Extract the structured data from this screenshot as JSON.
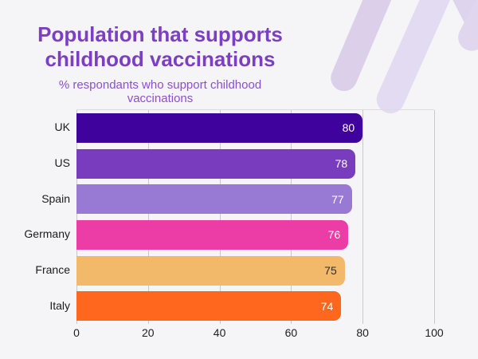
{
  "header": {
    "title_line1": "Population that supports",
    "title_line2": "childhood vaccinations",
    "subtitle": "% respondants who support childhood vaccinations"
  },
  "chart_data": {
    "type": "bar",
    "orientation": "horizontal",
    "title": "Population that supports childhood vaccinations",
    "subtitle": "% respondants who support childhood vaccinations",
    "categories": [
      "UK",
      "US",
      "Spain",
      "Germany",
      "France",
      "Italy"
    ],
    "values": [
      80,
      78,
      77,
      76,
      75,
      74
    ],
    "bar_colors": [
      "#40029d",
      "#7a3cbf",
      "#9879d3",
      "#ec3da6",
      "#f3b96a",
      "#ff661e"
    ],
    "value_label_colors": [
      "#ffffff",
      "#ffffff",
      "#ffffff",
      "#ffffff",
      "#2e2e2e",
      "#ffffff"
    ],
    "x_ticks": [
      0,
      20,
      40,
      60,
      80,
      100
    ],
    "xlim": [
      0,
      100
    ],
    "xlabel": "",
    "ylabel": "",
    "grid": "vertical",
    "legend": false
  },
  "colors": {
    "background": "#f5f4f6",
    "title": "#7c3ec2",
    "subtitle": "#8a50ce",
    "gridline": "#c9c9c9",
    "plot_top_border": "#dcdcdc",
    "category_label": "#1c1c1c",
    "tick_label": "#202020",
    "decoration": "#ddd3ed"
  }
}
